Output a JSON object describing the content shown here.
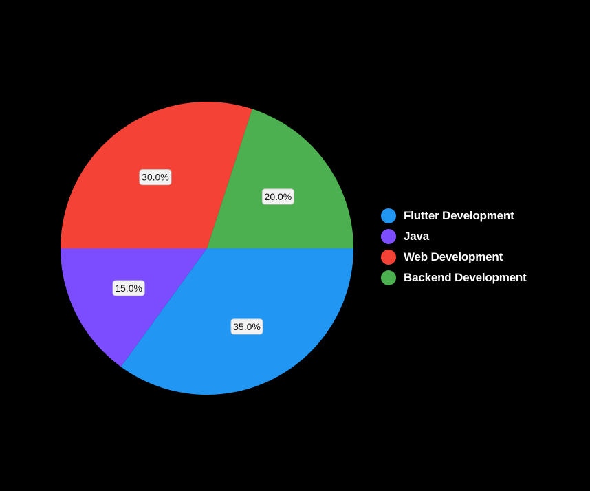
{
  "chart_data": {
    "type": "pie",
    "title": "",
    "slices": [
      {
        "label": "Flutter Development",
        "value": 35.0,
        "display": "35.0%",
        "color": "#2196F3"
      },
      {
        "label": "Java",
        "value": 15.0,
        "display": "15.0%",
        "color": "#7C4DFF"
      },
      {
        "label": "Web Development",
        "value": 30.0,
        "display": "30.0%",
        "color": "#F44336"
      },
      {
        "label": "Backend Development",
        "value": 20.0,
        "display": "20.0%",
        "color": "#4CAF50"
      }
    ],
    "legend_position": "right",
    "start_direction": "right",
    "direction": "clockwise"
  },
  "legend": {
    "items": [
      {
        "label": "Flutter Development",
        "color": "#2196F3"
      },
      {
        "label": "Java",
        "color": "#7C4DFF"
      },
      {
        "label": "Web Development",
        "color": "#F44336"
      },
      {
        "label": "Backend Development",
        "color": "#4CAF50"
      }
    ]
  }
}
